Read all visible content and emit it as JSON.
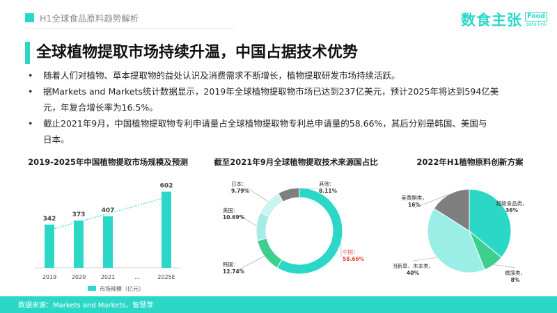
{
  "header": {
    "section_title": "H1全球食品原料趋势解析"
  },
  "logo": {
    "cn_text": "数食主张",
    "badge_text": "Food",
    "sub_text": "data link"
  },
  "slide": {
    "title": "全球植物提取市场持续升温，中国占据技术优势",
    "bullets": [
      {
        "line1": "随着人们对植物、草本提取物的益处认识及消费需求不断增长，植物提取研发市场持续活跃。",
        "line2": ""
      },
      {
        "line1": "据Markets and Markets统计数据显示，2019年全球植物提取物市场已达到237亿美元，预计2025年将达到594亿美",
        "line2": "元，年复合增长率为16.5%。"
      },
      {
        "line1": "截止2021年9月，中国植物提取物专利申请量占全球植物提取物专利总申请量的58.66%，其后分别是韩国、美国与",
        "line2": "日本。"
      }
    ]
  },
  "bullet_marker": "•",
  "chart_data": [
    {
      "type": "bar",
      "title": "2019-2025年中国植物提取市场规模及预测",
      "categories": [
        "2019",
        "2020",
        "2021",
        "…",
        "2025E"
      ],
      "series": [
        {
          "name": "市场规模（亿元）",
          "values": [
            342,
            373,
            407,
            null,
            602
          ]
        }
      ],
      "data_labels": [
        "342",
        "373",
        "407",
        "",
        "602"
      ],
      "ylim": [
        0,
        660
      ],
      "trendline": "dotted",
      "color": "#2bd8c8",
      "legend_position": "bottom"
    },
    {
      "type": "pie",
      "subtype": "donut",
      "title": "截至2021年9月全球植物提取技术来源国占比",
      "labels": [
        "中国",
        "韩国",
        "美国",
        "日本",
        "其他"
      ],
      "values": [
        58.66,
        12.74,
        10.69,
        9.79,
        8.11
      ],
      "value_labels": [
        "58.66%",
        "12.74%",
        "10.69%",
        "9.79%",
        "8.11%"
      ],
      "colors": [
        "#2bd8c8",
        "#3ecf8e",
        "#a7ece6",
        "#c9f4f0",
        "#7f7f7f"
      ]
    },
    {
      "type": "pie",
      "title": "2022年H1植物原料创新方案",
      "labels": [
        "超级食品类",
        "微藻类",
        "创新草、木本类",
        "美黄酮类"
      ],
      "values": [
        36,
        8,
        40,
        16
      ],
      "value_labels": [
        "36%",
        "8%",
        "40%",
        "16%"
      ],
      "colors": [
        "#2bd8c8",
        "#3ecf8e",
        "#9aeee6",
        "#7f7f7f"
      ]
    }
  ],
  "footer": {
    "source": "数据来源：Markets and Markets、智慧芽"
  }
}
